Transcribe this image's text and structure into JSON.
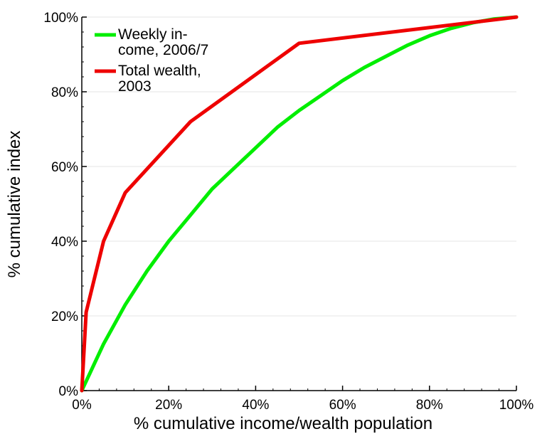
{
  "chart_data": {
    "type": "line",
    "title": "",
    "xlabel": "% cumulative income/wealth population",
    "ylabel": "% cumulative index",
    "xlim": [
      0,
      100
    ],
    "ylim": [
      0,
      100
    ],
    "grid": true,
    "legend_placement": "top-left",
    "x_tick_labels": [
      "0%",
      "20%",
      "40%",
      "60%",
      "80%",
      "100%"
    ],
    "y_tick_labels": [
      "0%",
      "20%",
      "40%",
      "60%",
      "80%",
      "100%"
    ],
    "series": [
      {
        "legend_lines": [
          "Weekly in-",
          "come, 2006/7"
        ],
        "color": "#00ee00",
        "x": [
          0,
          5,
          10,
          15,
          20,
          25,
          30,
          35,
          40,
          45,
          50,
          55,
          60,
          65,
          70,
          75,
          80,
          85,
          90,
          95,
          100
        ],
        "y": [
          0,
          12.5,
          23,
          32,
          40,
          47,
          54,
          59.5,
          65,
          70.5,
          75,
          79,
          83,
          86.5,
          89.5,
          92.5,
          95,
          97,
          98.5,
          99.5,
          100
        ]
      },
      {
        "legend_lines": [
          "Total wealth,",
          "2003"
        ],
        "color": "#ee0000",
        "x": [
          0,
          1,
          5,
          10,
          25,
          50,
          100
        ],
        "y": [
          0,
          21,
          40,
          53,
          72,
          93,
          100
        ]
      }
    ]
  }
}
